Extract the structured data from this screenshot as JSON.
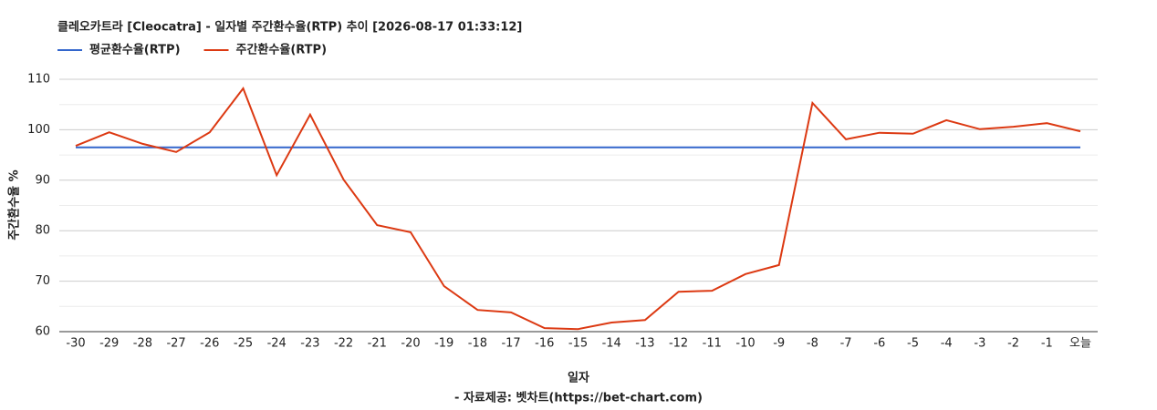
{
  "chart_data": {
    "type": "line",
    "title": "클레오카트라 [Cleocatra] - 일자별 주간환수율(RTP) 추이 [2026-08-17 01:33:12]",
    "x_label": "일자",
    "y_label": "주간환수율 %",
    "source": "- 자료제공: 벳차트(https://bet-chart.com)",
    "categories": [
      "-30",
      "-29",
      "-28",
      "-27",
      "-26",
      "-25",
      "-24",
      "-23",
      "-22",
      "-21",
      "-20",
      "-19",
      "-18",
      "-17",
      "-16",
      "-15",
      "-14",
      "-13",
      "-12",
      "-11",
      "-10",
      "-9",
      "-8",
      "-7",
      "-6",
      "-5",
      "-4",
      "-3",
      "-2",
      "-1",
      "오늘"
    ],
    "series": [
      {
        "name": "평균환수율(RTP)",
        "color": "#3366cc",
        "values": [
          96.5,
          96.5,
          96.5,
          96.5,
          96.5,
          96.5,
          96.5,
          96.5,
          96.5,
          96.5,
          96.5,
          96.5,
          96.5,
          96.5,
          96.5,
          96.5,
          96.5,
          96.5,
          96.5,
          96.5,
          96.5,
          96.5,
          96.5,
          96.5,
          96.5,
          96.5,
          96.5,
          96.5,
          96.5,
          96.5,
          96.5
        ]
      },
      {
        "name": "주간환수율(RTP)",
        "color": "#dc3912",
        "values": [
          96.8,
          99.5,
          97.2,
          95.6,
          99.5,
          108.2,
          91.0,
          103.0,
          90.1,
          81.1,
          79.7,
          69.0,
          64.3,
          63.8,
          60.7,
          60.5,
          61.8,
          62.3,
          67.9,
          68.1,
          71.4,
          73.2,
          105.3,
          98.1,
          99.4,
          99.2,
          101.9,
          100.1,
          100.6,
          101.3,
          99.7
        ]
      }
    ],
    "ylim": [
      60,
      110
    ],
    "yticks": [
      60,
      70,
      80,
      90,
      100,
      110
    ],
    "minor_yticks": [
      65,
      75,
      85,
      95,
      105
    ],
    "grid": true,
    "legend": "top"
  }
}
